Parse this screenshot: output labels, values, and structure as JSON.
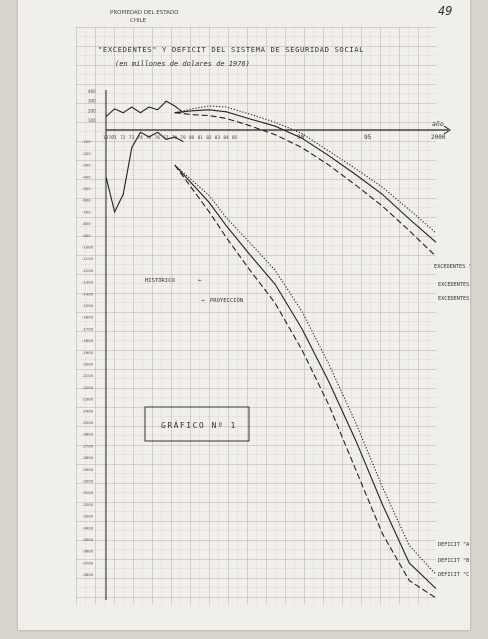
{
  "header": {
    "page_number": "49",
    "stamp_line1": "PROPIEDAD DEL ESTADO",
    "stamp_line2": "CHILE"
  },
  "chart_data": {
    "type": "line",
    "title": "\"EXCEDENTES\" Y DEFICIT DEL SISTEMA DE SEGURIDAD SOCIAL",
    "subtitle": "(en millones de dolares de 1976)",
    "xlabel": "año",
    "ylabel": "",
    "xlim": [
      1970,
      2000
    ],
    "ylim": [
      -4000,
      400
    ],
    "x_tick_labels": [
      "1970",
      "71",
      "72",
      "73",
      "74",
      "75",
      "76",
      "77",
      "78",
      "79",
      "80",
      "81",
      "82",
      "83",
      "84",
      "85"
    ],
    "x_axis_labels": [
      "90",
      "95",
      "2000"
    ],
    "y_tick_labels_upper": [
      "400",
      "300",
      "200",
      "100"
    ],
    "y_tick_labels_lower": [
      "-100",
      "-200",
      "-300",
      "-400",
      "-500",
      "-600",
      "-700",
      "-800",
      "-900",
      "-1000",
      "-1100",
      "-1200",
      "-1300",
      "-1400",
      "-1500",
      "-1600",
      "-1700",
      "-1800",
      "-1900",
      "-2000",
      "-2100",
      "-2200",
      "-2300",
      "-2400",
      "-2500",
      "-2600",
      "-2700",
      "-2800",
      "-2900",
      "-3000",
      "-3100",
      "-3200",
      "-3300",
      "-3400",
      "-3500",
      "-3600",
      "-3700",
      "-3800"
    ],
    "period_labels": {
      "historical": "HISTÓRICO",
      "projection": "PROYECCIÓN"
    },
    "badge": "GRÁFICO Nº 1",
    "series": [
      {
        "name": "EXCEDENTES \"A\"",
        "style": "dotted",
        "points": [
          [
            1978,
            180
          ],
          [
            1980,
            220
          ],
          [
            1982,
            250
          ],
          [
            1984,
            240
          ],
          [
            1986,
            170
          ],
          [
            1988,
            80
          ],
          [
            1990,
            -30
          ],
          [
            1992,
            -180
          ],
          [
            1994,
            -330
          ],
          [
            1996,
            -490
          ],
          [
            1998,
            -680
          ],
          [
            2000,
            -880
          ]
        ]
      },
      {
        "name": "EXCEDENTES \"B\"",
        "style": "solid",
        "points": [
          [
            1978,
            180
          ],
          [
            1980,
            200
          ],
          [
            1982,
            210
          ],
          [
            1984,
            190
          ],
          [
            1986,
            120
          ],
          [
            1988,
            40
          ],
          [
            1990,
            -70
          ],
          [
            1992,
            -220
          ],
          [
            1994,
            -380
          ],
          [
            1996,
            -550
          ],
          [
            1998,
            -760
          ],
          [
            2000,
            -960
          ]
        ]
      },
      {
        "name": "EXCEDENTES \"C\"",
        "style": "dashed",
        "points": [
          [
            1978,
            180
          ],
          [
            1980,
            160
          ],
          [
            1982,
            150
          ],
          [
            1984,
            120
          ],
          [
            1986,
            50
          ],
          [
            1988,
            -40
          ],
          [
            1990,
            -150
          ],
          [
            1992,
            -300
          ],
          [
            1994,
            -470
          ],
          [
            1996,
            -650
          ],
          [
            1998,
            -860
          ],
          [
            2000,
            -1080
          ]
        ]
      },
      {
        "name": "",
        "style": "solid",
        "points": [
          [
            1970,
            140
          ],
          [
            1971,
            220
          ],
          [
            1972,
            180
          ],
          [
            1973,
            240
          ],
          [
            1974,
            180
          ],
          [
            1975,
            240
          ],
          [
            1976,
            210
          ],
          [
            1977,
            300
          ],
          [
            1978,
            250
          ],
          [
            1979,
            180
          ]
        ]
      },
      {
        "name": "",
        "style": "solid",
        "points": [
          [
            1970,
            -400
          ],
          [
            1971,
            -700
          ],
          [
            1972,
            -550
          ],
          [
            1973,
            -150
          ],
          [
            1974,
            -20
          ],
          [
            1975,
            -60
          ],
          [
            1976,
            -20
          ],
          [
            1977,
            -80
          ],
          [
            1978,
            -60
          ],
          [
            1979,
            -100
          ]
        ]
      },
      {
        "name": "DEFICIT \"A\"",
        "style": "dotted",
        "points": [
          [
            1978,
            -300
          ],
          [
            1980,
            -430
          ],
          [
            1982,
            -560
          ],
          [
            1984,
            -750
          ],
          [
            1986,
            -950
          ],
          [
            1988,
            -1200
          ],
          [
            1990,
            -1550
          ],
          [
            1992,
            -2000
          ],
          [
            1994,
            -2500
          ],
          [
            1996,
            -3050
          ],
          [
            1998,
            -3550
          ],
          [
            2000,
            -3800
          ]
        ]
      },
      {
        "name": "DEFICIT \"B\"",
        "style": "solid",
        "points": [
          [
            1978,
            -300
          ],
          [
            1980,
            -460
          ],
          [
            1982,
            -620
          ],
          [
            1984,
            -820
          ],
          [
            1986,
            -1050
          ],
          [
            1988,
            -1320
          ],
          [
            1990,
            -1700
          ],
          [
            1992,
            -2150
          ],
          [
            1994,
            -2650
          ],
          [
            1996,
            -3200
          ],
          [
            1998,
            -3700
          ],
          [
            2000,
            -3920
          ]
        ]
      },
      {
        "name": "DEFICIT \"C\"",
        "style": "dashed",
        "points": [
          [
            1978,
            -300
          ],
          [
            1980,
            -500
          ],
          [
            1982,
            -700
          ],
          [
            1984,
            -920
          ],
          [
            1986,
            -1180
          ],
          [
            1988,
            -1480
          ],
          [
            1990,
            -1880
          ],
          [
            1992,
            -2350
          ],
          [
            1994,
            -2900
          ],
          [
            1996,
            -3450
          ],
          [
            1998,
            -3850
          ],
          [
            2000,
            -4000
          ]
        ]
      }
    ]
  }
}
